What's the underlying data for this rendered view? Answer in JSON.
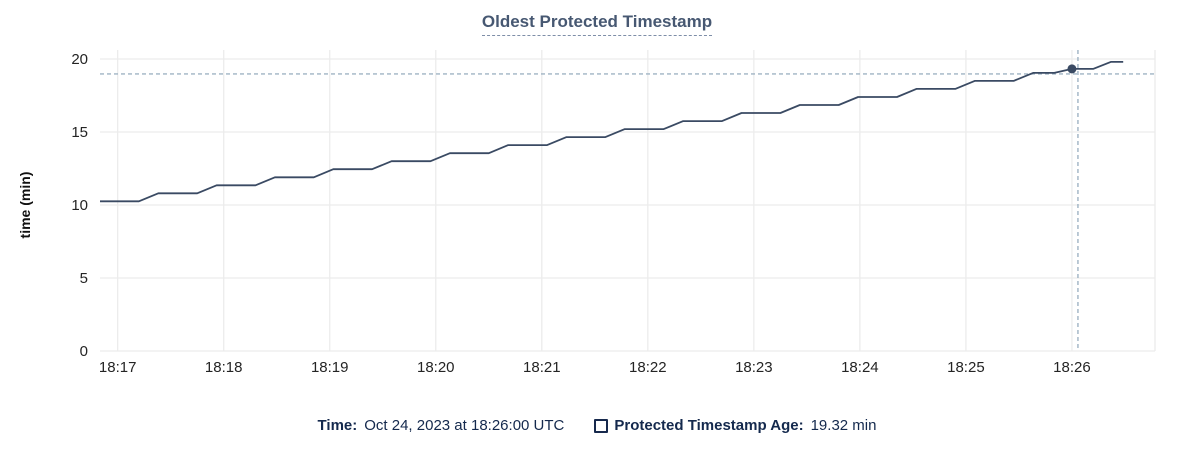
{
  "title": "Oldest Protected Timestamp",
  "colors": {
    "title_text": "#475872",
    "legend_text": "#14294d",
    "series_line": "#3a4a63",
    "grid": "#ececec",
    "crosshair": "#9fb3c4",
    "tick_text": "#242424"
  },
  "chart_data": {
    "type": "line",
    "title": "Oldest Protected Timestamp",
    "xlabel": "",
    "ylabel": "time (min)",
    "ylim": [
      0,
      20
    ],
    "y_ticks": [
      0,
      5,
      10,
      15,
      20
    ],
    "x_range": [
      "18:16:50",
      "18:26:47"
    ],
    "x_span_seconds": 597,
    "x_ticks": [
      {
        "t": 10,
        "label": "18:17"
      },
      {
        "t": 70,
        "label": "18:18"
      },
      {
        "t": 130,
        "label": "18:19"
      },
      {
        "t": 190,
        "label": "18:20"
      },
      {
        "t": 250,
        "label": "18:21"
      },
      {
        "t": 310,
        "label": "18:22"
      },
      {
        "t": 370,
        "label": "18:23"
      },
      {
        "t": 430,
        "label": "18:24"
      },
      {
        "t": 490,
        "label": "18:25"
      },
      {
        "t": 550,
        "label": "18:26"
      }
    ],
    "grid": true,
    "legend_position": "bottom",
    "series": [
      {
        "name": "Protected Timestamp Age",
        "points": [
          [
            0,
            10.25
          ],
          [
            22,
            10.25
          ],
          [
            33,
            10.8
          ],
          [
            55,
            10.8
          ],
          [
            66,
            11.35
          ],
          [
            88,
            11.35
          ],
          [
            99,
            11.9
          ],
          [
            121,
            11.9
          ],
          [
            132,
            12.45
          ],
          [
            154,
            12.45
          ],
          [
            165,
            13.0
          ],
          [
            187,
            13.0
          ],
          [
            198,
            13.55
          ],
          [
            220,
            13.55
          ],
          [
            231,
            14.1
          ],
          [
            253,
            14.1
          ],
          [
            264,
            14.65
          ],
          [
            286,
            14.65
          ],
          [
            297,
            15.2
          ],
          [
            319,
            15.2
          ],
          [
            330,
            15.75
          ],
          [
            352,
            15.75
          ],
          [
            363,
            16.3
          ],
          [
            385,
            16.3
          ],
          [
            396,
            16.85
          ],
          [
            418,
            16.85
          ],
          [
            429,
            17.4
          ],
          [
            451,
            17.4
          ],
          [
            462,
            17.95
          ],
          [
            484,
            17.95
          ],
          [
            495,
            18.5
          ],
          [
            517,
            18.5
          ],
          [
            528,
            19.05
          ],
          [
            540,
            19.05
          ],
          [
            550,
            19.32
          ],
          [
            562,
            19.32
          ],
          [
            572,
            19.8
          ],
          [
            579,
            19.8
          ]
        ]
      }
    ],
    "crosshair": {
      "t": 550,
      "value": 19.32,
      "time_label": "18:26"
    }
  },
  "legend": {
    "time_label": "Time:",
    "time_value": "Oct 24, 2023 at 18:26:00 UTC",
    "series_label": "Protected Timestamp Age:",
    "series_value": "19.32 min"
  }
}
